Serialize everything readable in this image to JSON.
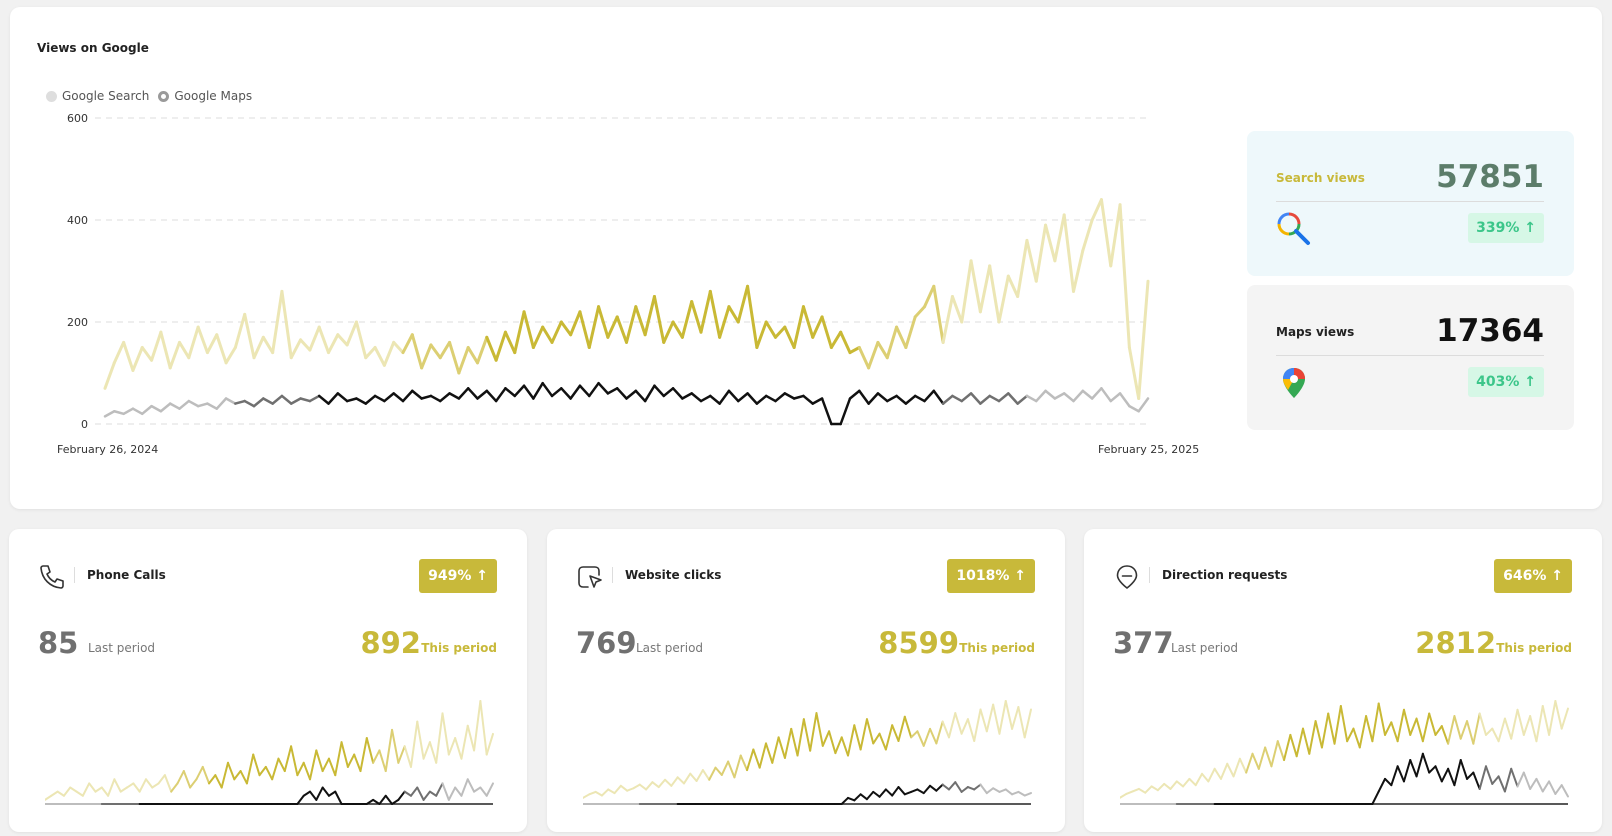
{
  "main": {
    "title": "Views on Google",
    "legend": [
      {
        "label": "Google Search",
        "color": "#dedede"
      },
      {
        "label": "Google Maps",
        "color": "#9a9a9a"
      }
    ],
    "y_ticks": [
      "0",
      "200",
      "400",
      "600"
    ],
    "x_start_label": "February 26, 2024",
    "x_end_label": "February 25, 2025"
  },
  "stats": {
    "search": {
      "label": "Search views",
      "value": "57851",
      "change": "339% ↑",
      "icon": "search-icon",
      "bg": "#eef8fb",
      "label_color": "#c8b93a",
      "value_color": "#5c7d6a"
    },
    "maps": {
      "label": "Maps views",
      "value": "17364",
      "change": "403% ↑",
      "icon": "map-pin-icon",
      "bg": "#f4f4f4",
      "label_color": "#222222",
      "value_color": "#111111"
    }
  },
  "cards": [
    {
      "title": "Phone Calls",
      "icon": "phone-icon",
      "change": "949% ↑",
      "last_value": "85",
      "last_label": "Last period",
      "this_value": "892",
      "this_label": "This period"
    },
    {
      "title": "Website clicks",
      "icon": "cursor-click-icon",
      "change": "1018% ↑",
      "last_value": "769",
      "last_label": "Last period",
      "this_value": "8599",
      "this_label": "This period"
    },
    {
      "title": "Direction requests",
      "icon": "direction-pin-icon",
      "change": "646% ↑",
      "last_value": "377",
      "last_label": "Last period",
      "this_value": "2812",
      "this_label": "This period"
    }
  ],
  "colors": {
    "accent": "#c8b93a",
    "accent_light": "#e6e0a3",
    "maps_line": "#111111",
    "badge_green": "#3cc68a"
  },
  "chart_data": [
    {
      "type": "line",
      "title": "Views on Google",
      "x_range": [
        "2024-02-26",
        "2025-02-25"
      ],
      "ylim": [
        0,
        600
      ],
      "yticks": [
        0,
        200,
        400,
        600
      ],
      "grid": true,
      "legend": "top-left",
      "series": [
        {
          "name": "Google Search",
          "values": [
            70,
            120,
            160,
            105,
            150,
            125,
            180,
            110,
            160,
            130,
            190,
            140,
            175,
            120,
            150,
            215,
            130,
            170,
            140,
            260,
            130,
            165,
            145,
            190,
            140,
            175,
            155,
            200,
            130,
            150,
            115,
            160,
            140,
            175,
            110,
            155,
            130,
            160,
            100,
            150,
            120,
            170,
            125,
            180,
            140,
            220,
            150,
            190,
            160,
            200,
            175,
            220,
            150,
            230,
            170,
            210,
            160,
            230,
            175,
            250,
            160,
            200,
            170,
            240,
            180,
            260,
            170,
            230,
            200,
            270,
            150,
            200,
            170,
            190,
            150,
            230,
            170,
            210,
            150,
            180,
            140,
            150,
            110,
            160,
            130,
            190,
            150,
            210,
            230,
            270,
            160,
            250,
            200,
            320,
            220,
            310,
            200,
            290,
            250,
            360,
            280,
            390,
            320,
            410,
            260,
            340,
            400,
            440,
            310,
            430,
            150,
            50,
            280
          ]
        },
        {
          "name": "Google Maps",
          "values": [
            15,
            25,
            20,
            30,
            20,
            35,
            25,
            40,
            30,
            45,
            35,
            40,
            30,
            50,
            40,
            45,
            35,
            50,
            40,
            55,
            40,
            50,
            45,
            55,
            40,
            60,
            45,
            50,
            40,
            55,
            45,
            60,
            45,
            65,
            50,
            55,
            45,
            60,
            50,
            70,
            50,
            65,
            45,
            70,
            55,
            75,
            50,
            80,
            55,
            70,
            50,
            75,
            55,
            80,
            60,
            70,
            50,
            65,
            45,
            75,
            55,
            70,
            50,
            60,
            45,
            55,
            40,
            65,
            45,
            60,
            40,
            55,
            45,
            60,
            50,
            55,
            40,
            50,
            0,
            0,
            50,
            65,
            40,
            60,
            45,
            55,
            40,
            55,
            45,
            65,
            40,
            55,
            45,
            60,
            40,
            55,
            45,
            60,
            40,
            55,
            45,
            65,
            50,
            60,
            45,
            65,
            50,
            70,
            45,
            60,
            35,
            25,
            50
          ]
        }
      ]
    },
    {
      "type": "line",
      "title": "Phone Calls",
      "series": [
        {
          "name": "This period",
          "values": [
            1,
            2,
            3,
            2,
            4,
            3,
            2,
            5,
            3,
            4,
            2,
            6,
            3,
            4,
            5,
            3,
            6,
            4,
            5,
            7,
            3,
            5,
            8,
            4,
            6,
            9,
            5,
            7,
            4,
            10,
            6,
            8,
            5,
            12,
            7,
            9,
            6,
            11,
            8,
            14,
            7,
            10,
            6,
            13,
            8,
            11,
            7,
            15,
            9,
            12,
            8,
            16,
            10,
            13,
            8,
            18,
            10,
            14,
            9,
            20,
            11,
            15,
            10,
            22,
            12,
            16,
            11,
            19,
            13,
            25,
            12,
            17
          ]
        },
        {
          "name": "Last period",
          "values": [
            0,
            0,
            0,
            0,
            0,
            0,
            0,
            0,
            0,
            0,
            0,
            0,
            0,
            0,
            0,
            0,
            0,
            0,
            0,
            0,
            0,
            0,
            0,
            0,
            0,
            0,
            0,
            0,
            0,
            0,
            0,
            0,
            0,
            0,
            0,
            0,
            0,
            0,
            0,
            0,
            0,
            2,
            3,
            1,
            4,
            2,
            3,
            0,
            0,
            0,
            0,
            0,
            1,
            0,
            2,
            0,
            1,
            3,
            2,
            4,
            1,
            3,
            2,
            5,
            1,
            4,
            2,
            6,
            3,
            4,
            2,
            5
          ]
        }
      ]
    },
    {
      "type": "line",
      "title": "Website clicks",
      "series": [
        {
          "name": "This period",
          "values": [
            5,
            8,
            10,
            7,
            12,
            9,
            15,
            11,
            13,
            16,
            12,
            18,
            14,
            20,
            15,
            22,
            17,
            25,
            19,
            28,
            20,
            30,
            24,
            35,
            22,
            40,
            28,
            45,
            30,
            50,
            34,
            55,
            38,
            62,
            40,
            70,
            44,
            75,
            48,
            60,
            42,
            55,
            40,
            65,
            45,
            70,
            50,
            58,
            45,
            65,
            52,
            72,
            55,
            60,
            48,
            62,
            50,
            68,
            55,
            75,
            58,
            70,
            52,
            78,
            60,
            82,
            58,
            85,
            62,
            80,
            55,
            78
          ]
        },
        {
          "name": "Last period",
          "values": [
            0,
            0,
            0,
            0,
            0,
            0,
            0,
            0,
            0,
            0,
            0,
            0,
            0,
            0,
            0,
            0,
            0,
            0,
            0,
            0,
            0,
            0,
            0,
            0,
            0,
            0,
            0,
            0,
            0,
            0,
            0,
            0,
            0,
            0,
            0,
            0,
            0,
            0,
            0,
            0,
            0,
            0,
            5,
            3,
            8,
            4,
            10,
            6,
            12,
            7,
            14,
            8,
            10,
            12,
            9,
            15,
            11,
            16,
            12,
            18,
            10,
            14,
            12,
            16,
            9,
            13,
            10,
            12,
            8,
            10,
            7,
            9
          ]
        }
      ]
    },
    {
      "type": "line",
      "title": "Direction requests",
      "series": [
        {
          "name": "This period",
          "values": [
            5,
            8,
            10,
            12,
            9,
            14,
            11,
            16,
            12,
            18,
            14,
            20,
            15,
            24,
            18,
            28,
            20,
            32,
            22,
            36,
            25,
            40,
            28,
            45,
            30,
            50,
            35,
            55,
            38,
            60,
            40,
            66,
            45,
            72,
            48,
            78,
            50,
            60,
            45,
            70,
            50,
            80,
            55,
            65,
            50,
            75,
            55,
            68,
            50,
            72,
            55,
            62,
            48,
            70,
            52,
            66,
            48,
            72,
            55,
            60,
            50,
            68,
            52,
            75,
            55,
            70,
            50,
            78,
            55,
            82,
            60,
            76
          ]
        },
        {
          "name": "Last period",
          "values": [
            0,
            0,
            0,
            0,
            0,
            0,
            0,
            0,
            0,
            0,
            0,
            0,
            0,
            0,
            0,
            0,
            0,
            0,
            0,
            0,
            0,
            0,
            0,
            0,
            0,
            0,
            0,
            0,
            0,
            0,
            0,
            0,
            0,
            0,
            0,
            0,
            0,
            0,
            0,
            0,
            0,
            10,
            20,
            15,
            30,
            18,
            35,
            22,
            40,
            25,
            30,
            18,
            28,
            15,
            35,
            20,
            25,
            12,
            30,
            16,
            22,
            10,
            28,
            14,
            25,
            12,
            20,
            10,
            18,
            8,
            15,
            6
          ]
        }
      ]
    }
  ]
}
